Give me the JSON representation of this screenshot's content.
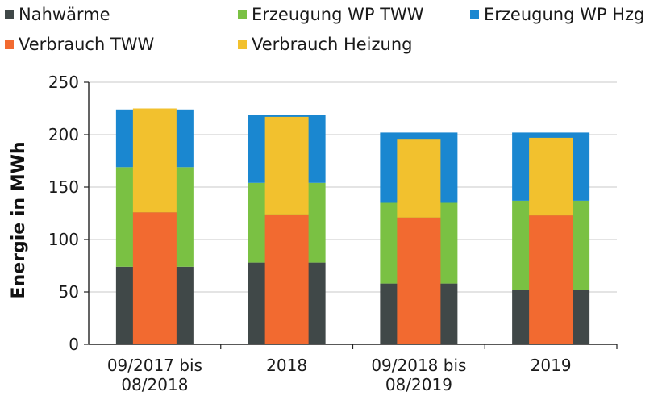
{
  "chart_data": {
    "type": "bar",
    "title": "",
    "xlabel": "",
    "ylabel": "Energie in MWh",
    "ylim": [
      0,
      250
    ],
    "yticks": [
      0,
      50,
      100,
      150,
      200,
      250
    ],
    "grid": true,
    "legend_position": "top",
    "categories": [
      [
        "09/2017 bis",
        "08/2018"
      ],
      [
        "2018"
      ],
      [
        "09/2018 bis",
        "08/2019"
      ],
      [
        "2019"
      ]
    ],
    "stack_groups": {
      "erzeugung": [
        "Nahwärme",
        "Erzeugung WP TWW",
        "Erzeugung WP Hzg"
      ],
      "verbrauch": [
        "Verbrauch TWW",
        "Verbrauch Heizung"
      ]
    },
    "series": [
      {
        "name": "Nahwärme",
        "group": "erzeugung",
        "color": "#404848",
        "values": [
          74,
          78,
          58,
          52
        ]
      },
      {
        "name": "Erzeugung WP TWW",
        "group": "erzeugung",
        "color": "#7ac143",
        "values": [
          95,
          76,
          77,
          85
        ]
      },
      {
        "name": "Erzeugung WP Hzg",
        "group": "erzeugung",
        "color": "#1a87d0",
        "values": [
          55,
          65,
          67,
          65
        ]
      },
      {
        "name": "Verbrauch TWW",
        "group": "verbrauch",
        "color": "#f26a30",
        "values": [
          126,
          124,
          121,
          123
        ]
      },
      {
        "name": "Verbrauch Heizung",
        "group": "verbrauch",
        "color": "#f2c12e",
        "values": [
          99,
          93,
          75,
          74
        ]
      }
    ]
  }
}
